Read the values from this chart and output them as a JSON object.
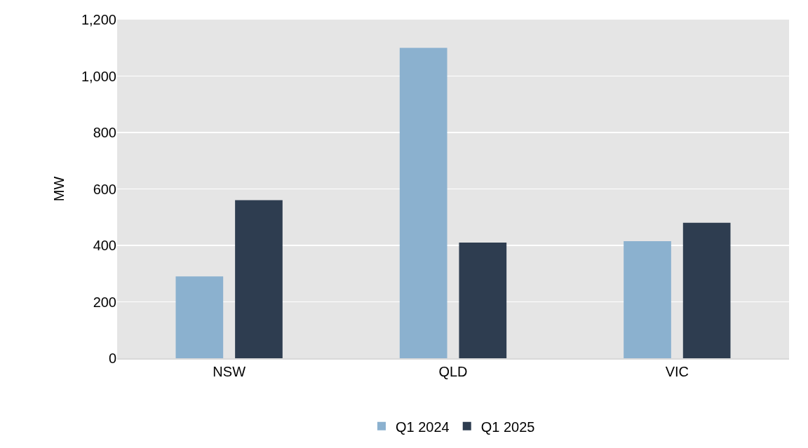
{
  "chart_data": {
    "type": "bar",
    "ylabel": "MW",
    "categories": [
      "NSW",
      "QLD",
      "VIC"
    ],
    "series": [
      {
        "name": "Q1 2024",
        "color": "#8bb1cf",
        "values": [
          290,
          1100,
          415
        ]
      },
      {
        "name": "Q1 2025",
        "color": "#2e3d50",
        "values": [
          560,
          410,
          480
        ]
      }
    ],
    "ylim": [
      0,
      1200
    ],
    "yticks": [
      0,
      {
        "value": 200,
        "label": "200"
      },
      {
        "value": 400,
        "label": "400"
      },
      {
        "value": 600,
        "label": "600"
      },
      {
        "value": 800,
        "label": "800"
      },
      {
        "value": 1000,
        "label": "1,000"
      },
      {
        "value": 1200,
        "label": "1,200"
      }
    ],
    "grid": "y",
    "legend": "bottom"
  }
}
